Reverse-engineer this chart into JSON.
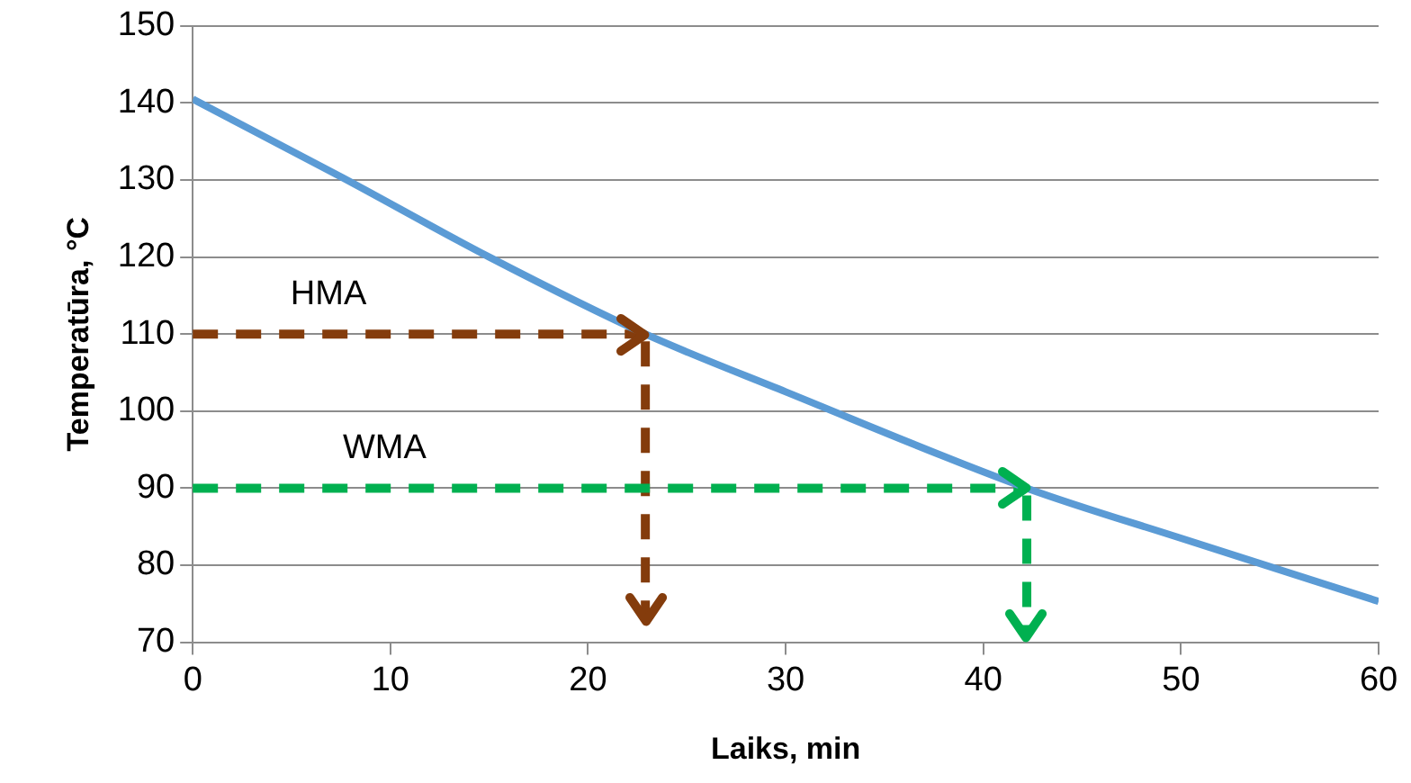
{
  "chart_data": {
    "type": "line",
    "xlabel": "Laiks, min",
    "ylabel": "Temperatūra, °C",
    "xlim": [
      0,
      60
    ],
    "xticks": [
      0,
      10,
      20,
      30,
      40,
      50,
      60
    ],
    "ylim": [
      70,
      150
    ],
    "yticks": [
      70,
      80,
      90,
      100,
      110,
      120,
      130,
      140,
      150
    ],
    "grid": "y",
    "legend": false,
    "marker": "none",
    "series": [
      {
        "color": "#5b9bd5",
        "x": [
          0,
          7.5,
          15,
          22.9,
          30,
          42.2,
          50,
          60
        ],
        "values": [
          140.5,
          130.4,
          120,
          110,
          102.5,
          90,
          83.5,
          75.3
        ],
        "line_style": "solid"
      }
    ],
    "ref_lines": [
      {
        "axis": "y",
        "value": 110,
        "label": "HMA",
        "color": "#843c0c",
        "line_style": "dashed"
      },
      {
        "axis": "x",
        "value": 22.9,
        "color": "#843c0c",
        "line_style": "dashed"
      },
      {
        "axis": "y",
        "value": 90,
        "label": "WMA",
        "color": "#00b050",
        "line_style": "dashed"
      },
      {
        "axis": "x",
        "value": 42.2,
        "color": "#00b050",
        "line_style": "dashed"
      }
    ]
  }
}
